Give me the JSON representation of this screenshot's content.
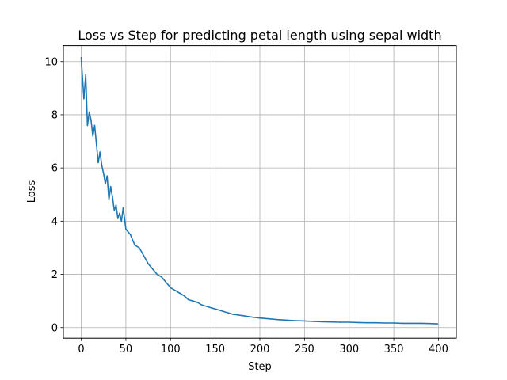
{
  "chart_data": {
    "type": "line",
    "title": "Loss vs Step for predicting petal length using sepal width",
    "xlabel": "Step",
    "ylabel": "Loss",
    "xlim": [
      -20,
      420
    ],
    "ylim": [
      -0.4,
      10.6
    ],
    "xticks": [
      0,
      50,
      100,
      150,
      200,
      250,
      300,
      350,
      400
    ],
    "yticks": [
      0,
      2,
      4,
      6,
      8,
      10
    ],
    "grid": true,
    "series": [
      {
        "color": "#1f77b4",
        "x": [
          0,
          3,
          5,
          7,
          9,
          11,
          13,
          15,
          17,
          19,
          21,
          23,
          25,
          27,
          29,
          31,
          33,
          35,
          37,
          39,
          41,
          43,
          45,
          47,
          50,
          55,
          60,
          65,
          70,
          75,
          80,
          85,
          90,
          95,
          100,
          105,
          110,
          115,
          120,
          125,
          130,
          135,
          140,
          145,
          150,
          160,
          170,
          180,
          190,
          200,
          210,
          220,
          230,
          240,
          250,
          260,
          270,
          280,
          290,
          300,
          310,
          320,
          330,
          340,
          350,
          360,
          370,
          380,
          390,
          399
        ],
        "y": [
          10.15,
          8.6,
          9.5,
          7.6,
          8.1,
          7.8,
          7.2,
          7.6,
          6.9,
          6.2,
          6.6,
          6.1,
          5.8,
          5.4,
          5.7,
          4.8,
          5.3,
          4.9,
          4.4,
          4.6,
          4.1,
          4.3,
          4.0,
          4.5,
          3.7,
          3.5,
          3.1,
          3.0,
          2.7,
          2.4,
          2.2,
          2.0,
          1.9,
          1.7,
          1.5,
          1.4,
          1.3,
          1.2,
          1.05,
          1.0,
          0.95,
          0.85,
          0.8,
          0.75,
          0.7,
          0.6,
          0.5,
          0.45,
          0.4,
          0.36,
          0.33,
          0.3,
          0.28,
          0.26,
          0.25,
          0.23,
          0.22,
          0.21,
          0.2,
          0.2,
          0.19,
          0.18,
          0.18,
          0.17,
          0.17,
          0.16,
          0.16,
          0.16,
          0.15,
          0.14
        ]
      }
    ]
  }
}
